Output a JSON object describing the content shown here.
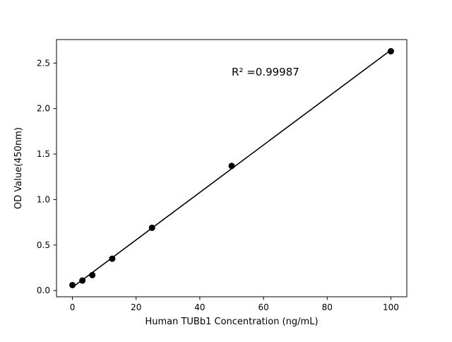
{
  "chart_data": {
    "type": "scatter",
    "title": "",
    "xlabel": "Human TUBb1 Concentration (ng/mL)",
    "ylabel": "OD Value(450nm)",
    "annotation": "R² =0.99987",
    "x": [
      0,
      3.125,
      6.25,
      12.5,
      25,
      50,
      100
    ],
    "y": [
      0.06,
      0.11,
      0.17,
      0.35,
      0.69,
      1.37,
      2.63
    ],
    "fit": "linear",
    "line_color": "#000000",
    "marker_color": "#000000",
    "xlim": [
      -5,
      105
    ],
    "ylim": [
      -0.0685,
      2.7585
    ],
    "xticks": [
      0,
      20,
      40,
      60,
      80,
      100
    ],
    "xtick_labels": [
      "0",
      "20",
      "40",
      "60",
      "80",
      "100"
    ],
    "yticks": [
      0,
      0.5,
      1.0,
      1.5,
      2.0,
      2.5
    ],
    "ytick_labels": [
      "0.0",
      "0.5",
      "1.0",
      "1.5",
      "2.0",
      "2.5"
    ],
    "grid": false,
    "legend": null
  }
}
